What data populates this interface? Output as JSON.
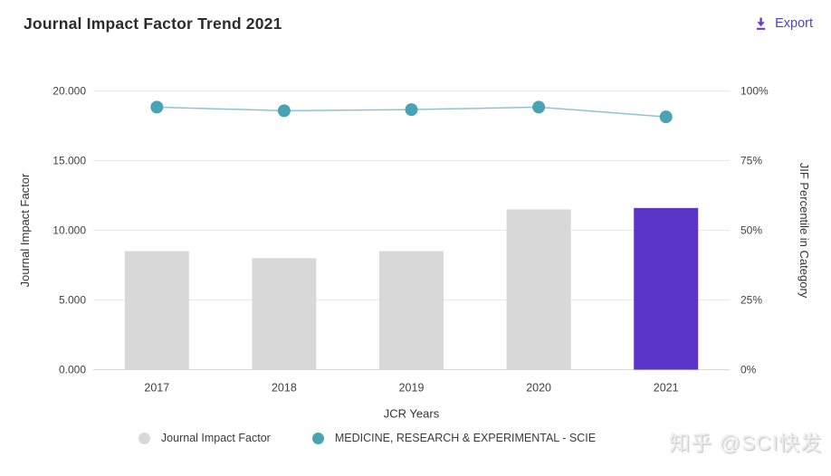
{
  "header": {
    "title": "Journal Impact Factor Trend 2021",
    "export_label": "Export"
  },
  "chart_data": {
    "type": "bar",
    "subtype": "combo-bar-line-dual-axis",
    "title": "Journal Impact Factor Trend 2021",
    "categories": [
      "2017",
      "2018",
      "2019",
      "2020",
      "2021"
    ],
    "xlabel": "JCR Years",
    "series": [
      {
        "name": "Journal Impact Factor",
        "type": "bar",
        "axis": "left",
        "values": [
          8.5,
          8.0,
          8.5,
          11.5,
          11.6
        ],
        "bar_color": "#d8d8d8",
        "highlight_color": "#5b35c8",
        "highlight_index": 4
      },
      {
        "name": "MEDICINE, RESEARCH & EXPERIMENTAL - SCIE",
        "type": "line",
        "axis": "right",
        "values": [
          94.2,
          92.9,
          93.3,
          94.2,
          90.7
        ],
        "marker_color": "#4aa2b5",
        "line_color": "#8fc4ce"
      }
    ],
    "left_axis": {
      "label": "Journal Impact Factor",
      "min": 0,
      "max": 20,
      "ticks": [
        "0.000",
        "5.000",
        "10.000",
        "15.000",
        "20.000"
      ]
    },
    "right_axis": {
      "label": "JIF Percentile in Category",
      "min": 0,
      "max": 100,
      "ticks": [
        "0%",
        "25%",
        "50%",
        "75%",
        "100%"
      ]
    },
    "grid": true,
    "legend_position": "bottom",
    "accent_color": "#4c46b4"
  },
  "watermark": "知乎 @SCI快发"
}
